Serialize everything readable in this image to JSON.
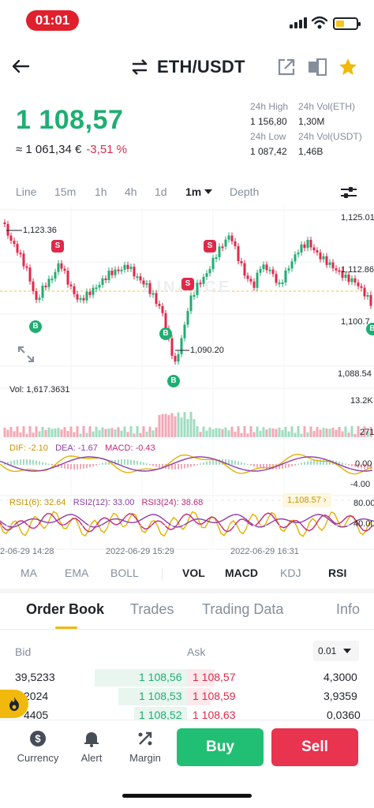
{
  "status_bar": {
    "time": "01:01"
  },
  "header": {
    "pair": "ETH/USDT"
  },
  "price": {
    "last": "1 108,57",
    "fiat": "≈ 1 061,34 €",
    "change": "-3,51 %"
  },
  "stats": {
    "high_label": "24h High",
    "high_value": "1 156,80",
    "low_label": "24h Low",
    "low_value": "1 087,42",
    "vol_eth_label": "24h Vol(ETH)",
    "vol_eth_value": "1,30M",
    "vol_usdt_label": "24h Vol(USDT)",
    "vol_usdt_value": "1,46B"
  },
  "intervals": [
    "Line",
    "15m",
    "1h",
    "4h",
    "1d",
    "1m",
    "Depth"
  ],
  "active_interval": "1m",
  "chart": {
    "right_axis": [
      "1,125.01",
      "1,112.86",
      "1,100.7",
      "1,088.54"
    ],
    "high_label": "1,123.36",
    "low_label": "1,090.20",
    "current_label": "1,108.57",
    "volume_label": "Vol: 1,617.3631",
    "vol_axis": [
      "13.2K",
      "271"
    ],
    "macd": {
      "dif": "DIF: -2.10",
      "dea": "DEA: -1.67",
      "macd": "MACD: -0.43"
    },
    "macd_axis": [
      "0.00",
      "-4.00"
    ],
    "rsi": {
      "rsi1": "RSI1(6): 32.64",
      "rsi2": "RSI2(12): 33.00",
      "rsi3": "RSI3(24): 38.68"
    },
    "rsi_axis": [
      "80.00",
      "40.00"
    ],
    "time_labels": [
      "2-06-29 14:28",
      "2022-06-29 15:29",
      "2022-06-29 16:31"
    ],
    "markers": {
      "buy": "B",
      "sell": "S"
    },
    "watermark": "BINANCE"
  },
  "indicators": {
    "main": [
      "MA",
      "EMA",
      "BOLL"
    ],
    "sub": [
      "VOL",
      "MACD",
      "KDJ",
      "RSI"
    ]
  },
  "order_tabs": [
    "Order Book",
    "Trades",
    "Trading Data",
    "Info"
  ],
  "order_book": {
    "bid_label": "Bid",
    "ask_label": "Ask",
    "precision": "0.01",
    "rows": [
      {
        "bid_qty": "39,5233",
        "bid_price": "1 108,56",
        "ask_price": "1 108,57",
        "ask_qty": "4,3000"
      },
      {
        "bid_qty": "2024",
        "bid_price": "1 108,53",
        "ask_price": "1 108,59",
        "ask_qty": "3,9359"
      },
      {
        "bid_qty": "4405",
        "bid_price": "1 108,52",
        "ask_price": "1 108,63",
        "ask_qty": "0,0360"
      }
    ]
  },
  "bottom_bar": {
    "currency": "Currency",
    "alert": "Alert",
    "margin": "Margin",
    "buy": "Buy",
    "sell": "Sell"
  },
  "colors": {
    "up": "#1fae72",
    "down": "#e0294a",
    "accent": "#f0b90b"
  },
  "icons": [
    "back-arrow-icon",
    "swap-icon",
    "share-icon",
    "compare-icon",
    "star-icon",
    "settings-sliders-icon",
    "expand-icon",
    "fire-icon",
    "currency-icon",
    "bell-icon",
    "margin-icon"
  ]
}
